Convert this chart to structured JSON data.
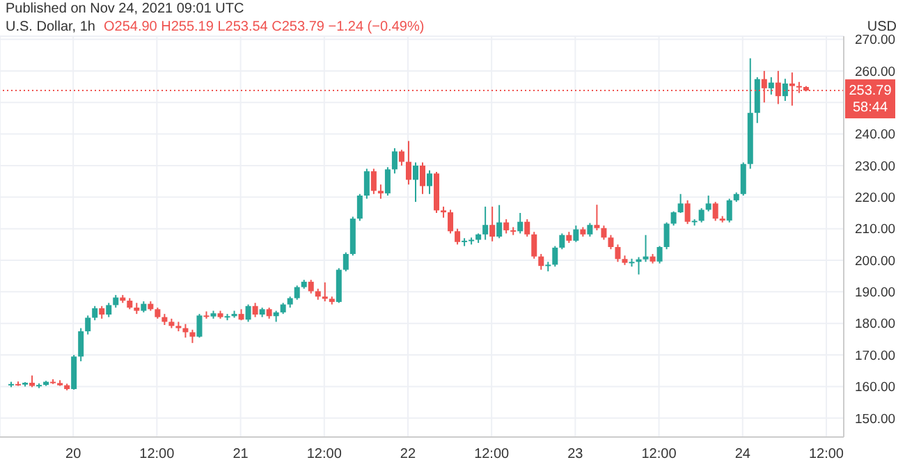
{
  "chart_data": {
    "type": "candlestick",
    "title": "U.S. Dollar, 1h",
    "subtitle": "O254.90 H255.19 L253.54 C253.79 −1.24 (−0.49%)",
    "annotations": [
      "Published on Nov 24, 2021 09:01 UTC",
      "USD",
      "58:44"
    ],
    "x": [
      "2021-11-19T15:00",
      "2021-11-19T16:00",
      "2021-11-19T17:00",
      "2021-11-19T18:00",
      "2021-11-19T19:00",
      "2021-11-19T20:00",
      "2021-11-19T21:00",
      "2021-11-19T22:00",
      "2021-11-19T23:00",
      "2021-11-20T00:00",
      "2021-11-20T01:00",
      "2021-11-20T02:00",
      "2021-11-20T03:00",
      "2021-11-20T04:00",
      "2021-11-20T05:00",
      "2021-11-20T06:00",
      "2021-11-20T07:00",
      "2021-11-20T08:00",
      "2021-11-20T09:00",
      "2021-11-20T10:00",
      "2021-11-20T11:00",
      "2021-11-20T12:00",
      "2021-11-20T13:00",
      "2021-11-20T14:00",
      "2021-11-20T15:00",
      "2021-11-20T16:00",
      "2021-11-20T17:00",
      "2021-11-20T18:00",
      "2021-11-20T19:00",
      "2021-11-20T20:00",
      "2021-11-20T21:00",
      "2021-11-20T22:00",
      "2021-11-20T23:00",
      "2021-11-21T00:00",
      "2021-11-21T01:00",
      "2021-11-21T02:00",
      "2021-11-21T03:00",
      "2021-11-21T04:00",
      "2021-11-21T05:00",
      "2021-11-21T06:00",
      "2021-11-21T07:00",
      "2021-11-21T08:00",
      "2021-11-21T09:00",
      "2021-11-21T10:00",
      "2021-11-21T11:00",
      "2021-11-21T12:00",
      "2021-11-21T13:00",
      "2021-11-21T14:00",
      "2021-11-21T15:00",
      "2021-11-21T16:00",
      "2021-11-21T17:00",
      "2021-11-21T18:00",
      "2021-11-21T19:00",
      "2021-11-21T20:00",
      "2021-11-21T21:00",
      "2021-11-21T22:00",
      "2021-11-21T23:00",
      "2021-11-22T00:00",
      "2021-11-22T01:00",
      "2021-11-22T02:00",
      "2021-11-22T03:00",
      "2021-11-22T04:00",
      "2021-11-22T05:00",
      "2021-11-22T06:00",
      "2021-11-22T07:00",
      "2021-11-22T08:00",
      "2021-11-22T09:00",
      "2021-11-22T10:00",
      "2021-11-22T11:00",
      "2021-11-22T12:00",
      "2021-11-22T13:00",
      "2021-11-22T14:00",
      "2021-11-22T15:00",
      "2021-11-22T16:00",
      "2021-11-22T17:00",
      "2021-11-22T18:00",
      "2021-11-22T19:00",
      "2021-11-22T20:00",
      "2021-11-22T21:00",
      "2021-11-22T22:00",
      "2021-11-22T23:00",
      "2021-11-23T00:00",
      "2021-11-23T01:00",
      "2021-11-23T02:00",
      "2021-11-23T03:00",
      "2021-11-23T04:00",
      "2021-11-23T05:00",
      "2021-11-23T06:00",
      "2021-11-23T07:00",
      "2021-11-23T08:00",
      "2021-11-23T09:00",
      "2021-11-23T10:00",
      "2021-11-23T11:00",
      "2021-11-23T12:00",
      "2021-11-23T13:00",
      "2021-11-23T14:00",
      "2021-11-23T15:00",
      "2021-11-23T16:00",
      "2021-11-23T17:00",
      "2021-11-23T18:00",
      "2021-11-23T19:00",
      "2021-11-23T20:00",
      "2021-11-23T21:00",
      "2021-11-23T22:00",
      "2021-11-23T23:00",
      "2021-11-24T00:00",
      "2021-11-24T01:00",
      "2021-11-24T02:00",
      "2021-11-24T03:00",
      "2021-11-24T04:00",
      "2021-11-24T05:00",
      "2021-11-24T06:00",
      "2021-11-24T07:00",
      "2021-11-24T08:00",
      "2021-11-24T09:00"
    ],
    "ohlc": [
      [
        160.5,
        161.5,
        159.8,
        160.8
      ],
      [
        160.8,
        161.6,
        160.2,
        160.6
      ],
      [
        160.6,
        161.4,
        160,
        161.2
      ],
      [
        161.2,
        163.5,
        159.8,
        160.2
      ],
      [
        160.2,
        161,
        159.5,
        160.5
      ],
      [
        160.5,
        161.8,
        160.2,
        161.5
      ],
      [
        161.5,
        162.3,
        160.8,
        161.1
      ],
      [
        161.1,
        162,
        160.2,
        160.4
      ],
      [
        160.4,
        160.9,
        158.8,
        159.2
      ],
      [
        159.2,
        170,
        159,
        169.5
      ],
      [
        169.5,
        178.5,
        168,
        177.5
      ],
      [
        177.5,
        182.5,
        176.5,
        181.8
      ],
      [
        181.8,
        185.5,
        181,
        184.8
      ],
      [
        184.8,
        185.5,
        181.5,
        182.8
      ],
      [
        182.8,
        186.5,
        182,
        185.8
      ],
      [
        185.8,
        189,
        185,
        188.2
      ],
      [
        188.2,
        189,
        186.5,
        187.2
      ],
      [
        187.2,
        188,
        184.5,
        185
      ],
      [
        185,
        186.5,
        183,
        184
      ],
      [
        184,
        187,
        183.5,
        186.2
      ],
      [
        186.2,
        187,
        184,
        184.5
      ],
      [
        184.5,
        185,
        181.5,
        182
      ],
      [
        182,
        183,
        179.5,
        180.5
      ],
      [
        180.5,
        181.5,
        178.5,
        179.2
      ],
      [
        179.2,
        180.5,
        177.5,
        178.5
      ],
      [
        178.5,
        179.8,
        175.5,
        177.2
      ],
      [
        177.2,
        178,
        173.8,
        175.8
      ],
      [
        175.8,
        183,
        175.5,
        182.5
      ],
      [
        182.5,
        183.8,
        181.5,
        182.2
      ],
      [
        182.2,
        184,
        181.5,
        183.2
      ],
      [
        183.2,
        184,
        181.5,
        182
      ],
      [
        182,
        183,
        181,
        182.3
      ],
      [
        182.3,
        184,
        181.8,
        183
      ],
      [
        183,
        184.5,
        181,
        181.2
      ],
      [
        181.2,
        186,
        180.5,
        185.5
      ],
      [
        185.5,
        186.5,
        182,
        182.8
      ],
      [
        182.8,
        185,
        182,
        184.5
      ],
      [
        184.5,
        185,
        181.5,
        182.3
      ],
      [
        182.3,
        184,
        180.5,
        183.5
      ],
      [
        183.5,
        186.5,
        183,
        186
      ],
      [
        186,
        188.5,
        185,
        188
      ],
      [
        188,
        192,
        187.5,
        191.5
      ],
      [
        191.5,
        193.8,
        191,
        193.2
      ],
      [
        193.2,
        193.8,
        189.5,
        190.2
      ],
      [
        190.2,
        191,
        187.5,
        188.5
      ],
      [
        188.5,
        193,
        187,
        187.8
      ],
      [
        187.8,
        188.5,
        186,
        186.8
      ],
      [
        186.8,
        197.5,
        186.5,
        197
      ],
      [
        197,
        202.5,
        196.5,
        202
      ],
      [
        202,
        213.8,
        201.5,
        213.2
      ],
      [
        213.2,
        221,
        212.5,
        220.5
      ],
      [
        220.5,
        229,
        219.5,
        228.2
      ],
      [
        228.2,
        229,
        221,
        222
      ],
      [
        222,
        224,
        219.5,
        221.2
      ],
      [
        221.2,
        229.5,
        220.5,
        228.8
      ],
      [
        228.8,
        235.5,
        227.5,
        234.5
      ],
      [
        234.5,
        235,
        230,
        231.2
      ],
      [
        231.2,
        237.8,
        224,
        225.5
      ],
      [
        225.5,
        231,
        218.5,
        230
      ],
      [
        230,
        231,
        221,
        223.5
      ],
      [
        223.5,
        228.5,
        221,
        227.5
      ],
      [
        227.5,
        228,
        215,
        215.8
      ],
      [
        215.8,
        217,
        213.5,
        215.2
      ],
      [
        215.2,
        216,
        208.5,
        209.2
      ],
      [
        209.2,
        210,
        205,
        205.8
      ],
      [
        205.8,
        207,
        204.5,
        206.2
      ],
      [
        206.2,
        207.2,
        205,
        206.5
      ],
      [
        206.5,
        208.5,
        205.5,
        208.2
      ],
      [
        208.2,
        217,
        206.5,
        211.2
      ],
      [
        211.2,
        217,
        206,
        207.5
      ],
      [
        207.5,
        217.5,
        207,
        212
      ],
      [
        212,
        213,
        208.5,
        209.5
      ],
      [
        209.5,
        210.5,
        208,
        209.2
      ],
      [
        209.2,
        215,
        208.5,
        212.2
      ],
      [
        212.2,
        213,
        207.5,
        208.2
      ],
      [
        208.2,
        209,
        200.5,
        201.2
      ],
      [
        201.2,
        202,
        197,
        198.2
      ],
      [
        198.2,
        199.5,
        196.5,
        198.6
      ],
      [
        198.6,
        204.5,
        198,
        204
      ],
      [
        204,
        208.5,
        203.5,
        208
      ],
      [
        208,
        209,
        205.5,
        206.2
      ],
      [
        206.2,
        211,
        205.8,
        209.8
      ],
      [
        209.8,
        210.5,
        207.5,
        208.2
      ],
      [
        208.2,
        211.8,
        207.5,
        211.2
      ],
      [
        211.2,
        217.6,
        209.5,
        210.2
      ],
      [
        210.2,
        211,
        206.5,
        207.2
      ],
      [
        207.2,
        208,
        203.5,
        204.2
      ],
      [
        204.2,
        205,
        199.5,
        200.4
      ],
      [
        200.4,
        201.5,
        198.5,
        199.2
      ],
      [
        199.2,
        200.5,
        198,
        199.5
      ],
      [
        199.5,
        201,
        195.5,
        200.3
      ],
      [
        200.3,
        208,
        199.5,
        201.2
      ],
      [
        201.2,
        202,
        199,
        199.6
      ],
      [
        199.6,
        204.5,
        199,
        204.2
      ],
      [
        204.2,
        212,
        203.5,
        211.6
      ],
      [
        211.6,
        215.5,
        211,
        215.2
      ],
      [
        215.2,
        221,
        215,
        218
      ],
      [
        218,
        219,
        211.5,
        212.2
      ],
      [
        212.2,
        213,
        211,
        212.5
      ],
      [
        212.5,
        216.5,
        212,
        216
      ],
      [
        216,
        220.5,
        215.5,
        218
      ],
      [
        218,
        218.5,
        212.5,
        213.2
      ],
      [
        213.2,
        214,
        212,
        212.6
      ],
      [
        212.6,
        219.5,
        212,
        219
      ],
      [
        219,
        221.5,
        218.5,
        221
      ],
      [
        221,
        231,
        220.5,
        230.5
      ],
      [
        230.5,
        264,
        229,
        246.7
      ],
      [
        246.7,
        258,
        243.5,
        257.4
      ],
      [
        257.4,
        260,
        250,
        254.5
      ],
      [
        254.5,
        258,
        252.5,
        256.3
      ],
      [
        256.3,
        260,
        249.5,
        252
      ],
      [
        252,
        257.5,
        250.5,
        256
      ],
      [
        256,
        259.5,
        249,
        255.2
      ],
      [
        255.2,
        256.5,
        253,
        254.9
      ],
      [
        254.9,
        255.19,
        253.54,
        253.79
      ]
    ],
    "colors": [
      "#26a69a",
      "#ef5350",
      "#26a69a",
      "#ef5350",
      "#26a69a",
      "#26a69a",
      "#ef5350",
      "#ef5350",
      "#ef5350",
      "#26a69a",
      "#26a69a",
      "#26a69a",
      "#26a69a",
      "#ef5350",
      "#26a69a",
      "#26a69a",
      "#ef5350",
      "#ef5350",
      "#ef5350",
      "#26a69a",
      "#ef5350",
      "#ef5350",
      "#ef5350",
      "#ef5350",
      "#ef5350",
      "#ef5350",
      "#ef5350",
      "#26a69a",
      "#ef5350",
      "#26a69a",
      "#ef5350",
      "#26a69a",
      "#26a69a",
      "#ef5350",
      "#26a69a",
      "#ef5350",
      "#26a69a",
      "#ef5350",
      "#26a69a",
      "#26a69a",
      "#26a69a",
      "#26a69a",
      "#26a69a",
      "#ef5350",
      "#ef5350",
      "#ef5350",
      "#ef5350",
      "#26a69a",
      "#26a69a",
      "#26a69a",
      "#26a69a",
      "#26a69a",
      "#ef5350",
      "#ef5350",
      "#26a69a",
      "#26a69a",
      "#ef5350",
      "#ef5350",
      "#26a69a",
      "#ef5350",
      "#26a69a",
      "#ef5350",
      "#ef5350",
      "#ef5350",
      "#ef5350",
      "#26a69a",
      "#26a69a",
      "#26a69a",
      "#26a69a",
      "#ef5350",
      "#26a69a",
      "#ef5350",
      "#ef5350",
      "#26a69a",
      "#ef5350",
      "#ef5350",
      "#ef5350",
      "#26a69a",
      "#26a69a",
      "#26a69a",
      "#ef5350",
      "#26a69a",
      "#ef5350",
      "#26a69a",
      "#ef5350",
      "#ef5350",
      "#ef5350",
      "#ef5350",
      "#ef5350",
      "#26a69a",
      "#26a69a",
      "#26a69a",
      "#ef5350",
      "#26a69a",
      "#26a69a",
      "#26a69a",
      "#26a69a",
      "#ef5350",
      "#26a69a",
      "#26a69a",
      "#26a69a",
      "#ef5350",
      "#ef5350",
      "#26a69a",
      "#26a69a",
      "#26a69a",
      "#26a69a",
      "#26a69a",
      "#ef5350",
      "#26a69a",
      "#ef5350",
      "#26a69a",
      "#ef5350",
      "#ef5350",
      "#ef5350"
    ],
    "xlim": [
      "2021-11-19T13:30",
      "2021-11-24T14:30"
    ],
    "xticks": [
      {
        "value": "2021-11-20T00:00",
        "label": "20"
      },
      {
        "value": "2021-11-20T12:00",
        "label": "12:00"
      },
      {
        "value": "2021-11-21T00:00",
        "label": "21"
      },
      {
        "value": "2021-11-21T12:00",
        "label": "12:00"
      },
      {
        "value": "2021-11-22T00:00",
        "label": "22"
      },
      {
        "value": "2021-11-22T12:00",
        "label": "12:00"
      },
      {
        "value": "2021-11-23T00:00",
        "label": "23"
      },
      {
        "value": "2021-11-23T12:00",
        "label": "12:00"
      },
      {
        "value": "2021-11-24T00:00",
        "label": "24"
      },
      {
        "value": "2021-11-24T12:00",
        "label": "12:00"
      }
    ],
    "ylim": [
      144,
      271
    ],
    "yticks": [
      {
        "value": 150,
        "label": "150.00"
      },
      {
        "value": 160,
        "label": "160.00"
      },
      {
        "value": 170,
        "label": "170.00"
      },
      {
        "value": 180,
        "label": "180.00"
      },
      {
        "value": 190,
        "label": "190.00"
      },
      {
        "value": 200,
        "label": "200.00"
      },
      {
        "value": 210,
        "label": "210.00"
      },
      {
        "value": 220,
        "label": "220.00"
      },
      {
        "value": 230,
        "label": "230.00"
      },
      {
        "value": 240,
        "label": "240.00"
      },
      {
        "value": 250,
        "label": null
      },
      {
        "value": 260,
        "label": "260.00"
      },
      {
        "value": 270,
        "label": "270.00"
      }
    ],
    "ref_lines": [
      {
        "axis": "y",
        "value": 253.79,
        "label": "253.79",
        "color": "#ef5350",
        "line_style": "dotted"
      }
    ],
    "grid": true
  }
}
